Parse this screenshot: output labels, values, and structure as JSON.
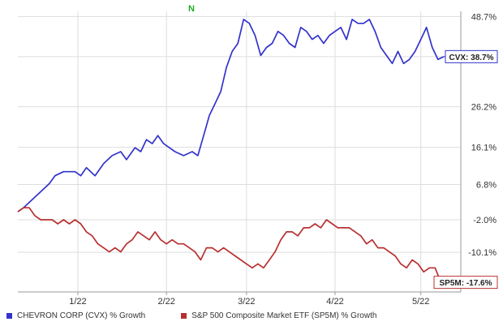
{
  "chart_data": {
    "type": "line",
    "title": "",
    "xlabel": "",
    "ylabel": "",
    "y_ticks": [
      "48.7%",
      "38.7%",
      "26.2%",
      "16.1%",
      "6.8%",
      "-2.0%",
      "-10.1%"
    ],
    "ylim": [
      -20,
      50
    ],
    "x_ticks": [
      {
        "label": "1/22",
        "t": 21
      },
      {
        "label": "2/22",
        "t": 52
      },
      {
        "label": "3/22",
        "t": 80
      },
      {
        "label": "4/22",
        "t": 111
      },
      {
        "label": "5/22",
        "t": 141
      }
    ],
    "xlim": [
      0,
      155
    ],
    "marker_label": "N",
    "grid": true,
    "y_axis_side": "right",
    "legend_position": "bottom",
    "series": [
      {
        "name": "CHEVRON CORP (CVX) % Growth",
        "color": "#3333cc",
        "end_label": "CVX: 38.7%",
        "points": [
          [
            0,
            0
          ],
          [
            2,
            1
          ],
          [
            5,
            3
          ],
          [
            8,
            5
          ],
          [
            11,
            7
          ],
          [
            13,
            9
          ],
          [
            16,
            10
          ],
          [
            18,
            10
          ],
          [
            20,
            10
          ],
          [
            22,
            9
          ],
          [
            24,
            11
          ],
          [
            27,
            9
          ],
          [
            30,
            12
          ],
          [
            33,
            14
          ],
          [
            36,
            15
          ],
          [
            38,
            13
          ],
          [
            41,
            16
          ],
          [
            43,
            15
          ],
          [
            45,
            18
          ],
          [
            47,
            17
          ],
          [
            49,
            19
          ],
          [
            51,
            17
          ],
          [
            53,
            16
          ],
          [
            55,
            15
          ],
          [
            58,
            14
          ],
          [
            61,
            15
          ],
          [
            63,
            14
          ],
          [
            65,
            19
          ],
          [
            67,
            24
          ],
          [
            69,
            27
          ],
          [
            71,
            30
          ],
          [
            73,
            36
          ],
          [
            75,
            40
          ],
          [
            77,
            42
          ],
          [
            79,
            48
          ],
          [
            81,
            47
          ],
          [
            83,
            44
          ],
          [
            85,
            39
          ],
          [
            87,
            41
          ],
          [
            89,
            42
          ],
          [
            91,
            45
          ],
          [
            93,
            44
          ],
          [
            95,
            42
          ],
          [
            97,
            41
          ],
          [
            99,
            46
          ],
          [
            101,
            45
          ],
          [
            103,
            43
          ],
          [
            105,
            44
          ],
          [
            107,
            42
          ],
          [
            109,
            44
          ],
          [
            111,
            45
          ],
          [
            113,
            46
          ],
          [
            115,
            43
          ],
          [
            117,
            48
          ],
          [
            119,
            47
          ],
          [
            121,
            47
          ],
          [
            123,
            48
          ],
          [
            125,
            45
          ],
          [
            127,
            41
          ],
          [
            129,
            39
          ],
          [
            131,
            37
          ],
          [
            133,
            40
          ],
          [
            135,
            37
          ],
          [
            137,
            38
          ],
          [
            139,
            40
          ],
          [
            141,
            43
          ],
          [
            143,
            46
          ],
          [
            145,
            41
          ],
          [
            147,
            38
          ],
          [
            149,
            38.7
          ]
        ]
      },
      {
        "name": "S&P 500 Composite Market ETF (SP5M) % Growth",
        "color": "#b83030",
        "end_label": "SP5M: -17.6%",
        "points": [
          [
            0,
            0
          ],
          [
            2,
            1
          ],
          [
            4,
            1
          ],
          [
            6,
            -1
          ],
          [
            8,
            -2
          ],
          [
            10,
            -2
          ],
          [
            12,
            -2
          ],
          [
            14,
            -3
          ],
          [
            16,
            -2
          ],
          [
            18,
            -3
          ],
          [
            20,
            -2
          ],
          [
            22,
            -3
          ],
          [
            24,
            -5
          ],
          [
            26,
            -6
          ],
          [
            28,
            -8
          ],
          [
            30,
            -9
          ],
          [
            32,
            -10
          ],
          [
            34,
            -9
          ],
          [
            36,
            -10
          ],
          [
            38,
            -8
          ],
          [
            40,
            -7
          ],
          [
            42,
            -5
          ],
          [
            44,
            -6
          ],
          [
            46,
            -7
          ],
          [
            48,
            -5
          ],
          [
            50,
            -7
          ],
          [
            52,
            -8
          ],
          [
            54,
            -7
          ],
          [
            56,
            -8
          ],
          [
            58,
            -8
          ],
          [
            60,
            -9
          ],
          [
            62,
            -10
          ],
          [
            64,
            -12
          ],
          [
            66,
            -9
          ],
          [
            68,
            -9
          ],
          [
            70,
            -10
          ],
          [
            72,
            -9
          ],
          [
            74,
            -10
          ],
          [
            76,
            -11
          ],
          [
            78,
            -12
          ],
          [
            80,
            -13
          ],
          [
            82,
            -14
          ],
          [
            84,
            -13
          ],
          [
            86,
            -14
          ],
          [
            88,
            -12
          ],
          [
            90,
            -10
          ],
          [
            92,
            -7
          ],
          [
            94,
            -5
          ],
          [
            96,
            -5
          ],
          [
            98,
            -6
          ],
          [
            100,
            -4
          ],
          [
            102,
            -4
          ],
          [
            104,
            -3
          ],
          [
            106,
            -4
          ],
          [
            108,
            -2
          ],
          [
            110,
            -3
          ],
          [
            112,
            -4
          ],
          [
            114,
            -4
          ],
          [
            116,
            -4
          ],
          [
            118,
            -5
          ],
          [
            120,
            -6
          ],
          [
            122,
            -8
          ],
          [
            124,
            -7
          ],
          [
            126,
            -9
          ],
          [
            128,
            -9
          ],
          [
            130,
            -10
          ],
          [
            132,
            -11
          ],
          [
            134,
            -13
          ],
          [
            136,
            -14
          ],
          [
            138,
            -12
          ],
          [
            140,
            -13
          ],
          [
            142,
            -15
          ],
          [
            144,
            -14
          ],
          [
            146,
            -14
          ],
          [
            148,
            -17.6
          ]
        ]
      }
    ]
  }
}
